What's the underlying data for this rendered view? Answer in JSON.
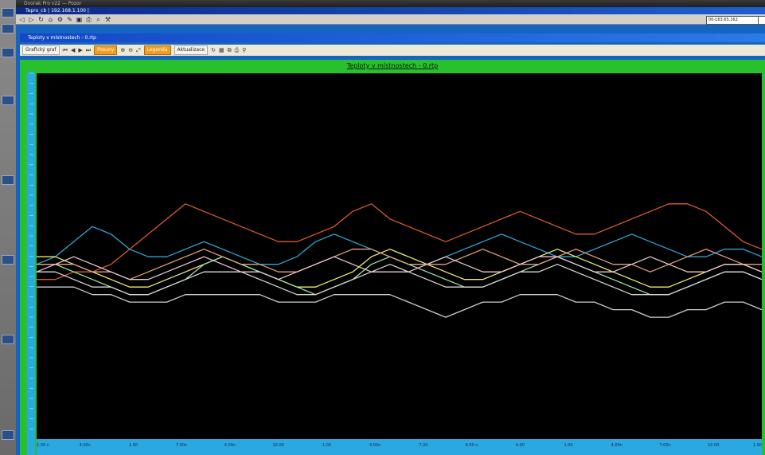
{
  "window": {
    "main_title": "Dvorak Pro v22 — Pozor",
    "inner_title": "Tepro_cb | 192.168.1.100 |",
    "address": "00-163.65.162"
  },
  "document": {
    "title": "Teploty v místnostech - 0.rtp"
  },
  "toolbar": {
    "left_label": "Grafický graf",
    "buttons": [
      "Posuny",
      "Legenda",
      "Aktualizace"
    ],
    "icons": [
      "save-icon",
      "undo-icon",
      "redo-icon",
      "print-icon",
      "zoom-icon",
      "back-arrow-icon",
      "forward-arrow-icon"
    ]
  },
  "chart_data": {
    "type": "line",
    "title": "Teploty v místnostech - 0.rtp",
    "xlabel": "",
    "ylabel": "",
    "x_tick_labels": [
      "1.00 n",
      "4.00n",
      "1.00",
      "7.00n",
      "4.00n",
      "10.00",
      "1.00",
      "4.00n",
      "7.00",
      "4.00 n",
      "4.00",
      "1.00",
      "4.00n",
      "7.00n",
      "10.00",
      "1.00"
    ],
    "grid": false,
    "background": "#000000",
    "series": [
      {
        "color": "#e05a2a",
        "values": [
          8,
          8,
          9,
          9,
          10,
          12,
          14,
          16,
          18,
          17,
          16,
          15,
          14,
          13,
          13,
          14,
          15,
          17,
          18,
          16,
          15,
          14,
          13,
          14,
          15,
          16,
          17,
          16,
          15,
          14,
          14,
          15,
          16,
          17,
          18,
          18,
          17,
          15,
          13,
          12
        ]
      },
      {
        "color": "#2fa8d8",
        "values": [
          10,
          11,
          13,
          15,
          14,
          12,
          11,
          11,
          12,
          13,
          12,
          11,
          10,
          10,
          11,
          13,
          14,
          13,
          12,
          11,
          10,
          10,
          11,
          12,
          13,
          14,
          13,
          12,
          11,
          11,
          12,
          13,
          14,
          13,
          12,
          11,
          11,
          12,
          12,
          11
        ]
      },
      {
        "color": "#f2f06a",
        "values": [
          11,
          11,
          10,
          9,
          8,
          7,
          7,
          8,
          9,
          10,
          11,
          10,
          9,
          8,
          7,
          7,
          8,
          9,
          11,
          12,
          11,
          10,
          9,
          8,
          8,
          9,
          10,
          11,
          12,
          11,
          10,
          9,
          8,
          7,
          7,
          8,
          9,
          10,
          10,
          9
        ]
      },
      {
        "color": "#9aeaa8",
        "values": [
          10,
          10,
          9,
          8,
          7,
          6,
          6,
          7,
          8,
          10,
          11,
          10,
          9,
          8,
          7,
          6,
          7,
          8,
          10,
          11,
          10,
          9,
          8,
          7,
          7,
          8,
          9,
          10,
          11,
          10,
          9,
          8,
          7,
          6,
          6,
          7,
          8,
          9,
          9,
          8
        ]
      },
      {
        "color": "#d8d8d8",
        "values": [
          9,
          9,
          8,
          7,
          7,
          6,
          6,
          7,
          8,
          9,
          9,
          9,
          8,
          7,
          6,
          6,
          7,
          8,
          9,
          10,
          9,
          8,
          7,
          7,
          7,
          8,
          9,
          9,
          10,
          9,
          8,
          7,
          6,
          6,
          6,
          7,
          8,
          9,
          9,
          8
        ]
      },
      {
        "color": "#e8a07a",
        "values": [
          10,
          10,
          10,
          9,
          9,
          8,
          9,
          10,
          11,
          12,
          11,
          10,
          10,
          9,
          9,
          10,
          11,
          12,
          12,
          11,
          10,
          10,
          10,
          11,
          12,
          11,
          10,
          10,
          11,
          12,
          11,
          10,
          10,
          9,
          10,
          11,
          12,
          11,
          10,
          10
        ]
      },
      {
        "color": "#cfcfcf",
        "values": [
          7,
          7,
          7,
          6,
          6,
          5,
          5,
          5,
          6,
          6,
          6,
          6,
          6,
          5,
          5,
          5,
          6,
          6,
          6,
          6,
          5,
          4,
          3,
          4,
          5,
          5,
          6,
          6,
          6,
          5,
          5,
          4,
          4,
          3,
          3,
          4,
          4,
          5,
          5,
          4
        ]
      },
      {
        "color": "#f0c8d8",
        "values": [
          9,
          10,
          11,
          10,
          9,
          8,
          8,
          9,
          10,
          11,
          10,
          9,
          9,
          8,
          9,
          10,
          11,
          10,
          9,
          9,
          9,
          10,
          11,
          10,
          9,
          9,
          10,
          11,
          11,
          10,
          9,
          9,
          10,
          11,
          10,
          9,
          9,
          10,
          10,
          9
        ]
      }
    ]
  }
}
